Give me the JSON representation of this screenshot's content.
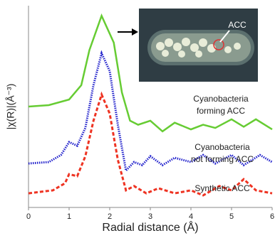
{
  "chart_data": {
    "type": "line",
    "x_label": "Radial distance   (Å)",
    "y_label": "|χ(R)|(Å⁻³)",
    "xlim": [
      0,
      6
    ],
    "xticks": [
      0,
      1,
      2,
      3,
      4,
      5,
      6
    ],
    "ylim": [
      0,
      100
    ],
    "series": [
      {
        "color": "#66cc33",
        "style": "solid",
        "x": [
          0,
          0.5,
          1,
          1.3,
          1.5,
          1.8,
          2.1,
          2.3,
          2.5,
          2.7,
          3,
          3.3,
          3.6,
          4,
          4.3,
          4.6,
          5,
          5.3,
          5.6,
          6
        ],
        "values": [
          50,
          50.7,
          53.5,
          60.6,
          78,
          95,
          81.7,
          57,
          43,
          41,
          43,
          37.7,
          42,
          38.7,
          41,
          39.4,
          43.7,
          40,
          43.7,
          38.7
        ]
      },
      {
        "color": "#2222cc",
        "style": "dotted",
        "x": [
          0,
          0.5,
          0.8,
          1,
          1.2,
          1.4,
          1.6,
          1.8,
          2,
          2.2,
          2.4,
          2.6,
          2.8,
          3,
          3.3,
          3.6,
          4,
          4.3,
          4.6,
          5,
          5.3,
          5.7,
          6
        ],
        "values": [
          21.8,
          22.5,
          26,
          32.4,
          30.6,
          39.4,
          60.6,
          76.4,
          67.6,
          41,
          18.3,
          22.5,
          21,
          25.4,
          21,
          24.6,
          22.5,
          26,
          21.8,
          26,
          21,
          26,
          22.5
        ]
      },
      {
        "color": "#ee3322",
        "style": "dashed",
        "x": [
          0,
          0.6,
          0.9,
          1,
          1.2,
          1.4,
          1.6,
          1.8,
          2,
          2.2,
          2.4,
          2.6,
          2.9,
          3.2,
          3.6,
          4,
          4.3,
          4.7,
          5,
          5.3,
          5.6,
          6
        ],
        "values": [
          7,
          8.5,
          12,
          16.5,
          15.5,
          25.4,
          43,
          56,
          46.5,
          23.6,
          8.5,
          10.6,
          7,
          9.5,
          7,
          8.5,
          6,
          10.6,
          8.5,
          14,
          8.5,
          7
        ]
      }
    ],
    "annotations": [
      [
        "Cyanobacteria",
        "forming ACC"
      ],
      [
        "Cyanobacteria",
        "not forming ACC"
      ],
      [
        "Synthetic ACC"
      ]
    ],
    "inset_label": "ACC"
  }
}
